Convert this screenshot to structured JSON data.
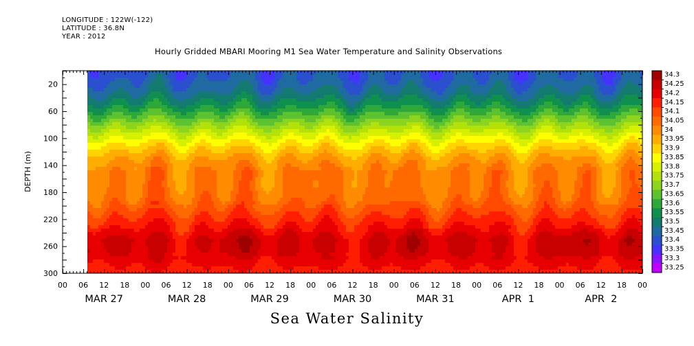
{
  "meta": {
    "longitude": "LONGITUDE : 122W(-122)",
    "latitude": "LATITUDE : 36.8N",
    "year": "YEAR : 2012"
  },
  "chart_data": {
    "type": "heatmap",
    "title": "Hourly Gridded MBARI Mooring M1 Sea Water Temperature and Salinity Observations",
    "xlabel": "Sea Water Salinity",
    "ylabel": "DEPTH (m)",
    "x_unit": "hours since MAR 27 00",
    "xlim": [
      0,
      168
    ],
    "data_start_hour": 7,
    "ylim": [
      300,
      0
    ],
    "yticks": [
      20,
      60,
      100,
      140,
      180,
      220,
      260,
      300
    ],
    "xtick_hour_labels": [
      "00",
      "06",
      "12",
      "18",
      "00",
      "06",
      "12",
      "18",
      "00",
      "06",
      "12",
      "18",
      "00",
      "06",
      "12",
      "18",
      "00",
      "06",
      "12",
      "18",
      "00",
      "06",
      "12",
      "18",
      "00",
      "06",
      "12",
      "18",
      "00"
    ],
    "date_labels": [
      "MAR 27",
      "MAR 28",
      "MAR 29",
      "MAR 30",
      "MAR 31",
      "APR  1",
      "APR  2"
    ],
    "colorbar": {
      "levels": [
        "34.3",
        "34.25",
        "34.2",
        "34.15",
        "34.1",
        "34.05",
        "34",
        "33.95",
        "33.9",
        "33.85",
        "33.8",
        "33.75",
        "33.7",
        "33.65",
        "33.6",
        "33.55",
        "33.5",
        "33.45",
        "33.4",
        "33.35",
        "33.3",
        "33.25"
      ],
      "colors": [
        "#a00000",
        "#c80000",
        "#e80000",
        "#ff1e00",
        "#ff4a00",
        "#ff6a00",
        "#ff8c00",
        "#ffae00",
        "#ffd400",
        "#ffff00",
        "#d6f000",
        "#b2e20a",
        "#8cd41e",
        "#5ec22e",
        "#2fa83a",
        "#10904e",
        "#127a6e",
        "#1f6aa0",
        "#2a50d0",
        "#4632ff",
        "#8a14ff",
        "#c000ff"
      ]
    },
    "profile": {
      "depths": [
        10,
        30,
        50,
        70,
        90,
        110,
        130,
        150,
        170,
        190,
        210,
        230,
        250,
        270,
        290,
        300
      ],
      "salinity": [
        33.44,
        33.49,
        33.57,
        33.68,
        33.8,
        33.91,
        34.0,
        34.05,
        34.05,
        34.07,
        34.13,
        34.19,
        34.26,
        34.25,
        34.2,
        34.18
      ]
    }
  }
}
